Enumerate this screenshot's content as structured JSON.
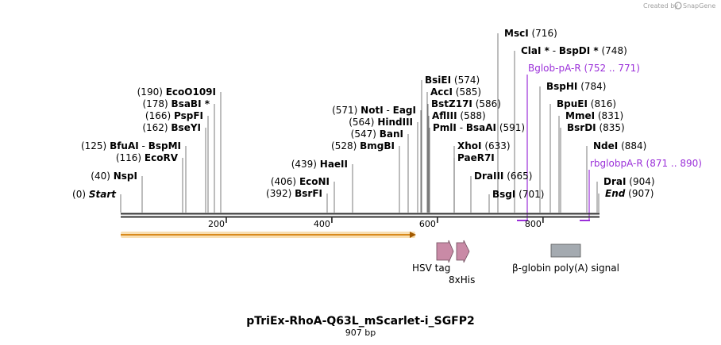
{
  "credit": {
    "created_by": "Created by",
    "brand": "SnapGene"
  },
  "plasmid": {
    "name": "pTriEx-RhoA-Q63L_mScarlet-i_SGFP2",
    "length_label": "907 bp",
    "length": 907
  },
  "ticks": [
    {
      "pos": 200,
      "label": "200"
    },
    {
      "pos": 400,
      "label": "400"
    },
    {
      "pos": 600,
      "label": "600"
    },
    {
      "pos": 800,
      "label": "800"
    }
  ],
  "sites": [
    {
      "name": "Start",
      "pos_label": "(0)",
      "italic": true
    },
    {
      "name": "NspI",
      "pos_label": "(40)"
    },
    {
      "name": "EcoRV",
      "pos_label": "(116)"
    },
    {
      "name": "BfuAI",
      "sep": "-",
      "name2": "BspMI",
      "pos_label": "(125)"
    },
    {
      "name": "BseYI",
      "pos_label": "(162)"
    },
    {
      "name": "PspFI",
      "pos_label": "(166)"
    },
    {
      "name": "BsaBI *",
      "pos_label": "(178)"
    },
    {
      "name": "EcoO109I",
      "pos_label": "(190)"
    },
    {
      "name": "BsrFI",
      "pos_label": "(392)"
    },
    {
      "name": "EcoNI",
      "pos_label": "(406)"
    },
    {
      "name": "HaeII",
      "pos_label": "(439)"
    },
    {
      "name": "BmgBI",
      "pos_label": "(528)"
    },
    {
      "name": "BanI",
      "pos_label": "(547)"
    },
    {
      "name": "HindIII",
      "pos_label": "(564)"
    },
    {
      "name": "NotI",
      "sep": "-",
      "name2": "EagI",
      "pos_label": "(571)"
    },
    {
      "name": "BsiEI",
      "pos_label": "(574)"
    },
    {
      "name": "AccI",
      "pos_label": "(585)"
    },
    {
      "name": "BstZ17I",
      "pos_label": "(586)"
    },
    {
      "name": "AflIII",
      "pos_label": "(588)"
    },
    {
      "name": "PmlI",
      "sep": "-",
      "name2": "BsaAI",
      "pos_label": "(591)"
    },
    {
      "name": "XhoI",
      "pos_label": "(633)"
    },
    {
      "name": "PaeR7I",
      "pos_label": ""
    },
    {
      "name": "DraIII",
      "pos_label": "(665)"
    },
    {
      "name": "BsgI",
      "pos_label": "(701)"
    },
    {
      "name": "MscI",
      "pos_label": "(716)"
    },
    {
      "name": "ClaI *",
      "sep": "-",
      "name2": "BspDI *",
      "pos_label": "(748)"
    },
    {
      "name": "BspHI",
      "pos_label": "(784)"
    },
    {
      "name": "BpuEI",
      "pos_label": "(816)"
    },
    {
      "name": "MmeI",
      "pos_label": "(831)"
    },
    {
      "name": "BsrDI",
      "pos_label": "(835)"
    },
    {
      "name": "NdeI",
      "pos_label": "(884)"
    },
    {
      "name": "DraI",
      "pos_label": "(904)"
    },
    {
      "name": "End",
      "pos_label": "(907)",
      "italic": true
    }
  ],
  "primers": [
    {
      "name": "Bglob-pA-R",
      "range": "(752 .. 771)"
    },
    {
      "name": "rbglobpA-R",
      "range": "(871 .. 890)"
    }
  ],
  "features": [
    {
      "name": "HSV tag",
      "type": "arrow"
    },
    {
      "name": "8xHis",
      "type": "arrow"
    },
    {
      "name": "β-globin poly(A) signal",
      "type": "box"
    }
  ],
  "colors": {
    "backbone": "#333333",
    "orf_fill": "#e8a23c",
    "orf_glow": "#f8dfb3",
    "tag_fill": "#c98aa6",
    "polyA_fill": "#a4aab0",
    "primer": "#9b30d9",
    "site_line": "#555555"
  }
}
